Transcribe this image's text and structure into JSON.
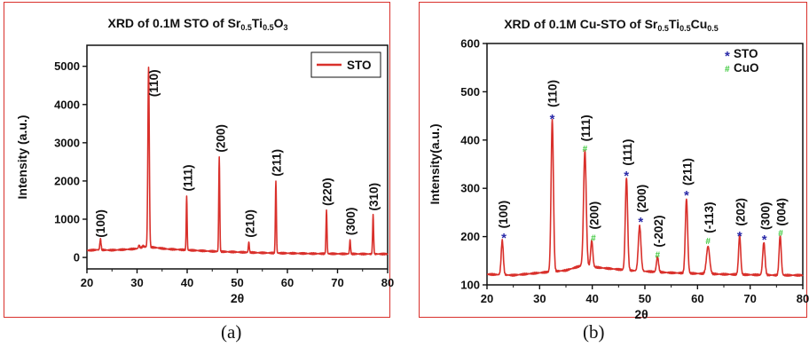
{
  "captions": [
    "(a)",
    "(b)"
  ],
  "colors": {
    "line": "#d9302b",
    "sto_marker": "#2a2aa8",
    "cuo_marker": "#3cc93c",
    "frame": "#d9302b"
  },
  "chart_data": [
    {
      "type": "line",
      "title": {
        "main": "XRD of 0.1M STO of Sr",
        "parts": [
          [
            "0.5",
            "sub"
          ],
          [
            "Ti",
            "n"
          ],
          [
            "0.5",
            "sub"
          ],
          [
            "O",
            "n"
          ],
          [
            "3",
            "sub"
          ]
        ]
      },
      "xlabel": "2θ",
      "ylabel": "Intensity (a.u.)",
      "xlim": [
        20,
        80
      ],
      "ylim": [
        -300,
        5550
      ],
      "xticks": [
        20,
        30,
        40,
        50,
        60,
        70,
        80
      ],
      "yticks": [
        0,
        1000,
        2000,
        3000,
        4000,
        5000
      ],
      "legend": {
        "position": "top-right",
        "entries": [
          "STO"
        ]
      },
      "series": [
        {
          "name": "STO",
          "baseline": [
            [
              20,
              180
            ],
            [
              22,
              200
            ],
            [
              25,
              190
            ],
            [
              28,
              210
            ],
            [
              30,
              230
            ],
            [
              31.5,
              280
            ],
            [
              33.5,
              260
            ],
            [
              36,
              220
            ],
            [
              45,
              160
            ],
            [
              55,
              120
            ],
            [
              65,
              100
            ],
            [
              75,
              90
            ],
            [
              80,
              90
            ]
          ],
          "peaks": [
            [
              22.7,
              480,
              0.12
            ],
            [
              30.4,
              320,
              0.12
            ],
            [
              31.2,
              300,
              0.12
            ],
            [
              32.3,
              4980,
              0.14
            ],
            [
              39.9,
              1600,
              0.09
            ],
            [
              46.4,
              2620,
              0.1
            ],
            [
              52.3,
              400,
              0.1
            ],
            [
              57.7,
              2000,
              0.1
            ],
            [
              67.8,
              1230,
              0.1
            ],
            [
              72.5,
              450,
              0.1
            ],
            [
              77.1,
              1100,
              0.1
            ]
          ]
        }
      ],
      "annotations": [
        {
          "text": "(100)",
          "x": 22.7,
          "y": 520
        },
        {
          "text": "(110)",
          "x": 33.3,
          "y": 4200
        },
        {
          "text": "(111)",
          "x": 40.1,
          "y": 1730
        },
        {
          "text": "(200)",
          "x": 46.6,
          "y": 2750
        },
        {
          "text": "(210)",
          "x": 52.5,
          "y": 520
        },
        {
          "text": "(211)",
          "x": 57.8,
          "y": 2120
        },
        {
          "text": "(220)",
          "x": 67.9,
          "y": 1350
        },
        {
          "text": "(300)",
          "x": 72.6,
          "y": 580
        },
        {
          "text": "(310)",
          "x": 77.2,
          "y": 1220
        }
      ]
    },
    {
      "type": "line",
      "title": {
        "main": "XRD of 0.1M Cu-STO of Sr",
        "parts": [
          [
            "0.5",
            "sub"
          ],
          [
            "Ti",
            "n"
          ],
          [
            "0.5",
            "sub"
          ],
          [
            "Cu",
            "n"
          ],
          [
            "0.5",
            "sub"
          ]
        ]
      },
      "xlabel": "2θ",
      "ylabel": "Intensity(a.u.)",
      "xlim": [
        20,
        80
      ],
      "ylim": [
        100,
        600
      ],
      "xticks": [
        20,
        30,
        40,
        50,
        60,
        70,
        80
      ],
      "yticks": [
        100,
        200,
        300,
        400,
        500,
        600
      ],
      "legend": {
        "position": "top-right",
        "entries": [
          {
            "marker": "*",
            "label": "STO"
          },
          {
            "marker": "#",
            "label": "CuO"
          }
        ]
      },
      "series": [
        {
          "name": "",
          "baseline": [
            [
              20,
              122
            ],
            [
              25,
              120
            ],
            [
              30,
              125
            ],
            [
              35,
              130
            ],
            [
              38,
              140
            ],
            [
              42,
              135
            ],
            [
              47,
              130
            ],
            [
              55,
              125
            ],
            [
              65,
              122
            ],
            [
              75,
              120
            ],
            [
              80,
              120
            ]
          ],
          "peaks": [
            [
              22.9,
              192,
              0.2
            ],
            [
              32.4,
              442,
              0.22
            ],
            [
              38.6,
              378,
              0.25
            ],
            [
              39.9,
              192,
              0.2
            ],
            [
              46.5,
              322,
              0.22
            ],
            [
              49.0,
              222,
              0.25
            ],
            [
              52.4,
              158,
              0.2
            ],
            [
              57.9,
              278,
              0.22
            ],
            [
              62.0,
              180,
              0.3
            ],
            [
              68.0,
              202,
              0.2
            ],
            [
              72.6,
              188,
              0.22
            ],
            [
              75.7,
              202,
              0.2
            ]
          ]
        }
      ],
      "markers": [
        {
          "symbol": "*",
          "kind": "sto",
          "x": 23.2,
          "y": 203
        },
        {
          "symbol": "*",
          "kind": "sto",
          "x": 32.4,
          "y": 449
        },
        {
          "symbol": "#",
          "kind": "cuo",
          "x": 38.6,
          "y": 383
        },
        {
          "symbol": "#",
          "kind": "cuo",
          "x": 40.2,
          "y": 198
        },
        {
          "symbol": "*",
          "kind": "sto",
          "x": 46.5,
          "y": 332
        },
        {
          "symbol": "*",
          "kind": "sto",
          "x": 49.2,
          "y": 236
        },
        {
          "symbol": "#",
          "kind": "cuo",
          "x": 52.4,
          "y": 163
        },
        {
          "symbol": "*",
          "kind": "sto",
          "x": 57.9,
          "y": 291
        },
        {
          "symbol": "#",
          "kind": "cuo",
          "x": 62.0,
          "y": 192
        },
        {
          "symbol": "*",
          "kind": "sto",
          "x": 68.0,
          "y": 207
        },
        {
          "symbol": "*",
          "kind": "sto",
          "x": 72.7,
          "y": 199
        },
        {
          "symbol": "#",
          "kind": "cuo",
          "x": 75.8,
          "y": 208
        }
      ],
      "annotations": [
        {
          "text": "(100)",
          "x": 23.0,
          "y": 217
        },
        {
          "text": "(110)",
          "x": 32.4,
          "y": 468
        },
        {
          "text": "(111)",
          "x": 38.7,
          "y": 397
        },
        {
          "text": "(200)",
          "x": 40.3,
          "y": 215
        },
        {
          "text": "(111)",
          "x": 46.6,
          "y": 347
        },
        {
          "text": "(200)",
          "x": 49.3,
          "y": 250
        },
        {
          "text": "(-202)",
          "x": 52.5,
          "y": 178
        },
        {
          "text": "(211)",
          "x": 58.0,
          "y": 306
        },
        {
          "text": "(-113)",
          "x": 62.1,
          "y": 207
        },
        {
          "text": "(202)",
          "x": 68.1,
          "y": 222
        },
        {
          "text": "(300)",
          "x": 72.8,
          "y": 214
        },
        {
          "text": "(004)",
          "x": 75.9,
          "y": 222
        }
      ]
    }
  ]
}
